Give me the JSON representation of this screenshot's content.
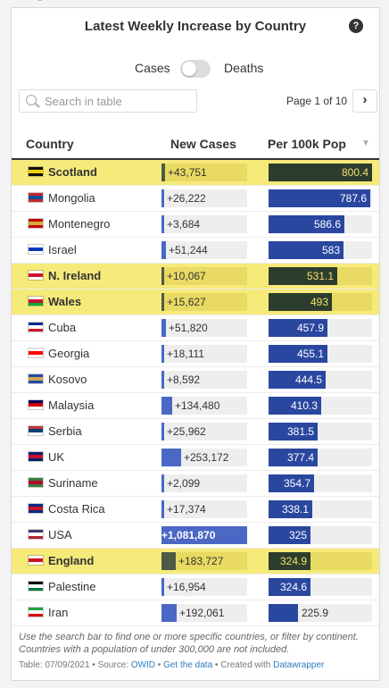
{
  "title": "Latest Weekly Increase by Country",
  "help_icon": "?",
  "toggle": {
    "left_label": "Cases",
    "right_label": "Deaths",
    "selected": "Cases"
  },
  "search": {
    "placeholder": "Search in table"
  },
  "pagination": {
    "text": "Page 1 of 10",
    "next_label": "›"
  },
  "columns": {
    "country": "Country",
    "new_cases": "New Cases",
    "per100k": "Per 100k Pop",
    "sort_icon": "▼"
  },
  "colors": {
    "highlight": "#f6ea7a",
    "bar_blue": "#4a68c4",
    "bar_dark_blue": "#2a47a0",
    "bar_highlight": "#2d3d2d",
    "per100k_highlight_text": "#f4e06e"
  },
  "rows": [
    {
      "country": "Scotland",
      "new_cases": "+43,751",
      "new_cases_value": 43751,
      "per100k": "800.4",
      "per100k_value": 800.4,
      "highlight": true,
      "flag": [
        "#0d0d0d",
        "#f4d000",
        "#0d0d0d"
      ]
    },
    {
      "country": "Mongolia",
      "new_cases": "+26,222",
      "new_cases_value": 26222,
      "per100k": "787.6",
      "per100k_value": 787.6,
      "highlight": false,
      "flag": [
        "#c4272f",
        "#015197",
        "#c4272f"
      ]
    },
    {
      "country": "Montenegro",
      "new_cases": "+3,684",
      "new_cases_value": 3684,
      "per100k": "586.6",
      "per100k_value": 586.6,
      "highlight": false,
      "flag": [
        "#c40308",
        "#d4af37",
        "#c40308"
      ]
    },
    {
      "country": "Israel",
      "new_cases": "+51,244",
      "new_cases_value": 51244,
      "per100k": "583",
      "per100k_value": 583,
      "highlight": false,
      "flag": [
        "#ffffff",
        "#0038b8",
        "#ffffff"
      ]
    },
    {
      "country": "N. Ireland",
      "new_cases": "+10,067",
      "new_cases_value": 10067,
      "per100k": "531.1",
      "per100k_value": 531.1,
      "highlight": true,
      "flag": [
        "#ffffff",
        "#cf142b",
        "#ffffff"
      ]
    },
    {
      "country": "Wales",
      "new_cases": "+15,627",
      "new_cases_value": 15627,
      "per100k": "493",
      "per100k_value": 493,
      "highlight": true,
      "flag": [
        "#ffffff",
        "#c8102e",
        "#00ab39"
      ]
    },
    {
      "country": "Cuba",
      "new_cases": "+51,820",
      "new_cases_value": 51820,
      "per100k": "457.9",
      "per100k_value": 457.9,
      "highlight": false,
      "flag": [
        "#002a8f",
        "#ffffff",
        "#cf142b"
      ]
    },
    {
      "country": "Georgia",
      "new_cases": "+18,111",
      "new_cases_value": 18111,
      "per100k": "455.1",
      "per100k_value": 455.1,
      "highlight": false,
      "flag": [
        "#ffffff",
        "#ff0000",
        "#ffffff"
      ]
    },
    {
      "country": "Kosovo",
      "new_cases": "+8,592",
      "new_cases_value": 8592,
      "per100k": "444.5",
      "per100k_value": 444.5,
      "highlight": false,
      "flag": [
        "#244aa5",
        "#d0a650",
        "#244aa5"
      ]
    },
    {
      "country": "Malaysia",
      "new_cases": "+134,480",
      "new_cases_value": 134480,
      "per100k": "410.3",
      "per100k_value": 410.3,
      "highlight": false,
      "flag": [
        "#010066",
        "#cc0001",
        "#ffffff"
      ]
    },
    {
      "country": "Serbia",
      "new_cases": "+25,962",
      "new_cases_value": 25962,
      "per100k": "381.5",
      "per100k_value": 381.5,
      "highlight": false,
      "flag": [
        "#c6363c",
        "#0c4076",
        "#ffffff"
      ]
    },
    {
      "country": "UK",
      "new_cases": "+253,172",
      "new_cases_value": 253172,
      "per100k": "377.4",
      "per100k_value": 377.4,
      "highlight": false,
      "flag": [
        "#012169",
        "#c8102e",
        "#012169"
      ]
    },
    {
      "country": "Suriname",
      "new_cases": "+2,099",
      "new_cases_value": 2099,
      "per100k": "354.7",
      "per100k_value": 354.7,
      "highlight": false,
      "flag": [
        "#377e3f",
        "#b40a2d",
        "#377e3f"
      ]
    },
    {
      "country": "Costa Rica",
      "new_cases": "+17,374",
      "new_cases_value": 17374,
      "per100k": "338.1",
      "per100k_value": 338.1,
      "highlight": false,
      "flag": [
        "#002b7f",
        "#ce1126",
        "#002b7f"
      ]
    },
    {
      "country": "USA",
      "new_cases": "+1,081,870",
      "new_cases_value": 1081870,
      "per100k": "325",
      "per100k_value": 325,
      "highlight": false,
      "flag": [
        "#3c3b6e",
        "#ffffff",
        "#b22234"
      ]
    },
    {
      "country": "England",
      "new_cases": "+183,727",
      "new_cases_value": 183727,
      "per100k": "324.9",
      "per100k_value": 324.9,
      "highlight": true,
      "flag": [
        "#ffffff",
        "#ce1124",
        "#ffffff"
      ]
    },
    {
      "country": "Palestine",
      "new_cases": "+16,954",
      "new_cases_value": 16954,
      "per100k": "324.6",
      "per100k_value": 324.6,
      "highlight": false,
      "flag": [
        "#000000",
        "#ffffff",
        "#007a3d"
      ]
    },
    {
      "country": "Iran",
      "new_cases": "+192,061",
      "new_cases_value": 192061,
      "per100k": "225.9",
      "per100k_value": 225.9,
      "highlight": false,
      "flag": [
        "#239f40",
        "#ffffff",
        "#da0000"
      ]
    }
  ],
  "notes": "Use the search bar to find one or more specific countries, or filter by continent. Countries with a population of under 300,000 are not included.",
  "footer": {
    "table_label": "Table: 07/09/2021 • Source: ",
    "source": "OWID",
    "sep1": " • ",
    "get_data": "Get the data",
    "sep2": " • Created with ",
    "created_with": "Datawrapper"
  }
}
